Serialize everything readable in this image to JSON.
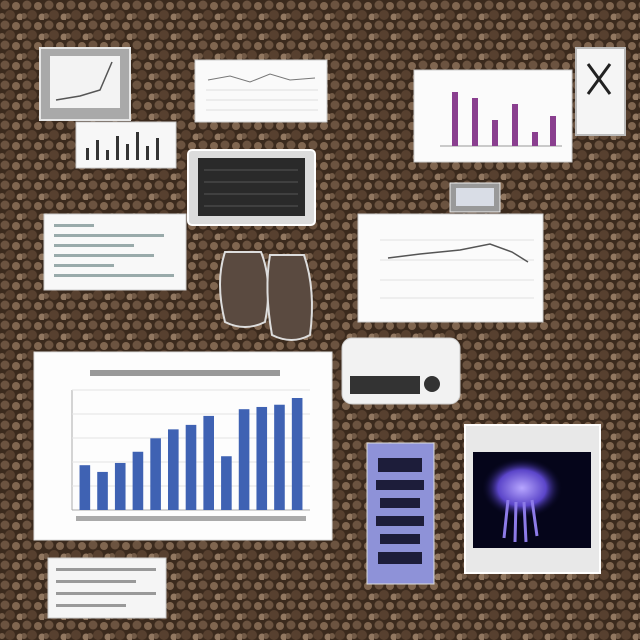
{
  "chart_data": {
    "type": "bar",
    "values": [
      40,
      34,
      42,
      52,
      64,
      72,
      76,
      84,
      48,
      90,
      92,
      94,
      100
    ],
    "color": "#3f62b3"
  }
}
